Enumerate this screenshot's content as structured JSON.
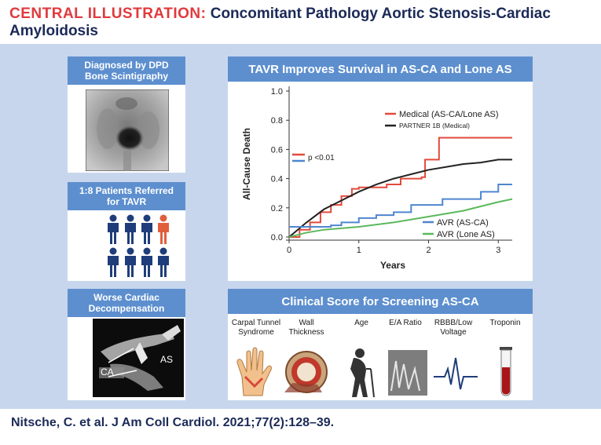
{
  "header": {
    "label": "CENTRAL ILLUSTRATION:",
    "title_line1": "Concomitant Pathology Aortic Stenosis-Cardiac",
    "title_line2": "Amyloidosis"
  },
  "left": {
    "box1_title_line1": "Diagnosed by DPD",
    "box1_title_line2": "Bone Scintigraphy",
    "box2_title_line1": "1:8 Patients Referred",
    "box2_title_line2": "for TAVR",
    "box3_title_line1": "Worse Cardiac",
    "box3_title_line2": "Decompensation",
    "echo_label_ca": "CA",
    "echo_label_as": "AS"
  },
  "chart_data": {
    "type": "line",
    "title": "TAVR Improves Survival in AS-CA and Lone AS",
    "xlabel": "Years",
    "ylabel": "All-Cause Death",
    "xlim": [
      0,
      3.2
    ],
    "ylim": [
      0,
      1.0
    ],
    "xticks": [
      "0",
      "1",
      "2",
      "3"
    ],
    "yticks": [
      "0.0",
      "0.2",
      "0.4",
      "0.6",
      "0.8",
      "1.0"
    ],
    "p_value_text": "p <0.01",
    "series": [
      {
        "name": "Medical (AS-CA/Lone AS)",
        "color": "#e24a3b",
        "step": true,
        "x": [
          0,
          0.15,
          0.3,
          0.45,
          0.6,
          0.75,
          0.9,
          1.0,
          1.2,
          1.4,
          1.6,
          1.9,
          1.95,
          2.1,
          2.15,
          3.2
        ],
        "y": [
          0,
          0.05,
          0.1,
          0.17,
          0.22,
          0.28,
          0.33,
          0.34,
          0.34,
          0.36,
          0.4,
          0.41,
          0.53,
          0.53,
          0.68,
          0.68
        ]
      },
      {
        "name": "PARTNER 1B (Medical)",
        "color": "#222222",
        "step": false,
        "x": [
          0,
          0.25,
          0.5,
          0.75,
          1.0,
          1.25,
          1.5,
          1.75,
          2.0,
          2.25,
          2.5,
          2.75,
          3.0,
          3.2
        ],
        "y": [
          0,
          0.1,
          0.19,
          0.25,
          0.31,
          0.36,
          0.4,
          0.43,
          0.46,
          0.48,
          0.5,
          0.51,
          0.53,
          0.53
        ]
      },
      {
        "name": "AVR (AS-CA)",
        "color": "#4f86cf",
        "step": true,
        "x": [
          0,
          0.25,
          0.6,
          0.75,
          1.0,
          1.25,
          1.5,
          1.75,
          2.2,
          2.5,
          2.75,
          3.0,
          3.2
        ],
        "y": [
          0.07,
          0.07,
          0.08,
          0.1,
          0.13,
          0.15,
          0.17,
          0.22,
          0.26,
          0.26,
          0.31,
          0.36,
          0.36
        ]
      },
      {
        "name": "AVR (Lone AS)",
        "color": "#5cb85c",
        "step": false,
        "x": [
          0,
          0.25,
          0.5,
          1.0,
          1.5,
          2.0,
          2.5,
          3.0,
          3.2
        ],
        "y": [
          0,
          0.03,
          0.05,
          0.07,
          0.1,
          0.14,
          0.18,
          0.24,
          0.26
        ]
      }
    ]
  },
  "score": {
    "title": "Clinical Score for Screening AS-CA",
    "items": [
      {
        "line1": "Carpal Tunnel",
        "line2": "Syndrome"
      },
      {
        "line1": "Wall",
        "line2": "Thickness"
      },
      {
        "line1": "Age",
        "line2": ""
      },
      {
        "line1": "E/A Ratio",
        "line2": ""
      },
      {
        "line1": "RBBB/Low",
        "line2": "Voltage"
      },
      {
        "line1": "Troponin",
        "line2": ""
      }
    ]
  },
  "citation": "Nitsche, C. et al. J Am Coll Cardiol. 2021;77(2):128–39."
}
